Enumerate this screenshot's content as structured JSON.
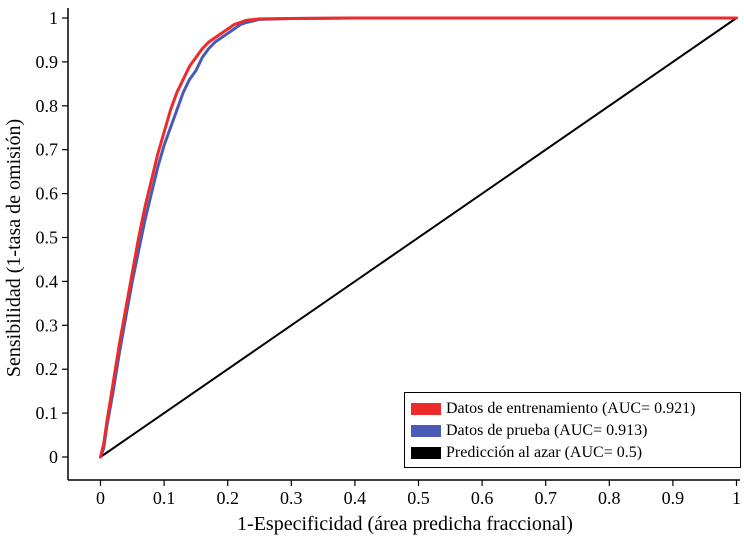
{
  "chart_data": {
    "type": "line",
    "title": "",
    "xlabel": "1-Especificidad (área predicha fraccional)",
    "ylabel": "Sensibilidad (1-tasa de omisión)",
    "xlim": [
      0,
      1
    ],
    "ylim": [
      0,
      1
    ],
    "x_ticks": [
      "0",
      "0.1",
      "0.2",
      "0.3",
      "0.4",
      "0.5",
      "0.6",
      "0.7",
      "0.8",
      "0.9",
      "1"
    ],
    "y_ticks": [
      "0",
      "0.1",
      "0.2",
      "0.3",
      "0.4",
      "0.5",
      "0.6",
      "0.7",
      "0.8",
      "0.9",
      "1"
    ],
    "grid": false,
    "legend_position": "bottom-right",
    "colors": {
      "train": "#ee2b2b",
      "test": "#4a5bb6",
      "random": "#000000"
    },
    "series": [
      {
        "name": "Datos de entrenamiento (AUC= 0.921)",
        "color": "#ee2b2b",
        "x": [
          0,
          0.005,
          0.01,
          0.02,
          0.03,
          0.04,
          0.05,
          0.06,
          0.07,
          0.08,
          0.09,
          0.1,
          0.11,
          0.12,
          0.13,
          0.14,
          0.15,
          0.16,
          0.17,
          0.18,
          0.19,
          0.2,
          0.21,
          0.22,
          0.23,
          0.25,
          0.3,
          0.4,
          0.5,
          0.6,
          0.7,
          0.8,
          0.9,
          1
        ],
        "y": [
          0,
          0.03,
          0.08,
          0.17,
          0.26,
          0.34,
          0.42,
          0.5,
          0.57,
          0.63,
          0.69,
          0.74,
          0.79,
          0.83,
          0.86,
          0.89,
          0.91,
          0.93,
          0.945,
          0.955,
          0.965,
          0.975,
          0.985,
          0.99,
          0.995,
          0.998,
          0.999,
          1,
          1,
          1,
          1,
          1,
          1,
          1
        ]
      },
      {
        "name": "Datos de prueba (AUC= 0.913)",
        "color": "#4a5bb6",
        "x": [
          0,
          0.005,
          0.01,
          0.02,
          0.03,
          0.04,
          0.05,
          0.06,
          0.07,
          0.08,
          0.09,
          0.1,
          0.11,
          0.12,
          0.13,
          0.14,
          0.15,
          0.16,
          0.17,
          0.18,
          0.19,
          0.2,
          0.21,
          0.22,
          0.23,
          0.25,
          0.3,
          0.4,
          0.5,
          0.6,
          0.7,
          0.8,
          0.9,
          1
        ],
        "y": [
          0,
          0.02,
          0.07,
          0.15,
          0.24,
          0.32,
          0.4,
          0.47,
          0.54,
          0.6,
          0.66,
          0.71,
          0.75,
          0.79,
          0.83,
          0.86,
          0.88,
          0.91,
          0.93,
          0.945,
          0.955,
          0.965,
          0.975,
          0.985,
          0.99,
          0.997,
          0.999,
          1,
          1,
          1,
          1,
          1,
          1,
          1
        ]
      },
      {
        "name": "Predicción al azar (AUC= 0.5)",
        "color": "#000000",
        "x": [
          0,
          1
        ],
        "y": [
          0,
          1
        ]
      }
    ]
  }
}
